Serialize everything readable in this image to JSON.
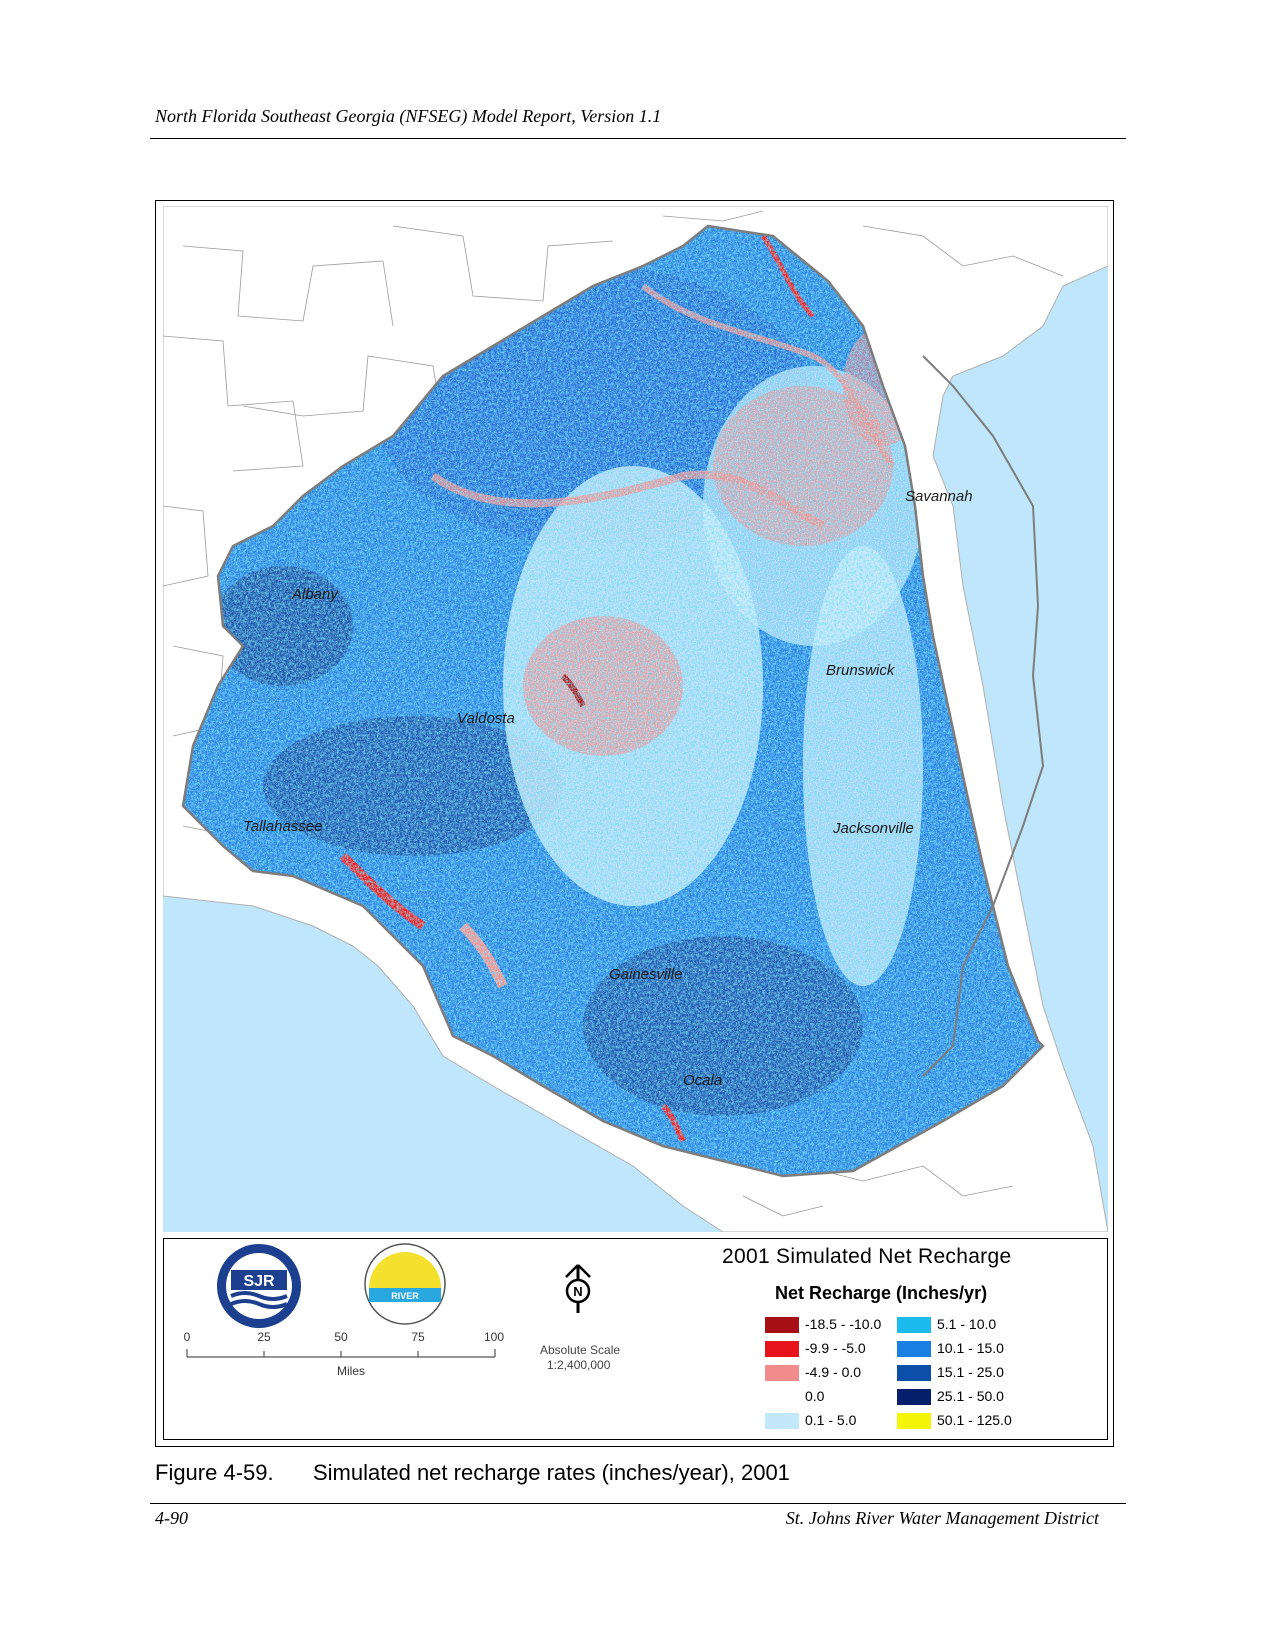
{
  "header": {
    "running_title": "North Florida Southeast Georgia (NFSEG) Model Report, Version 1.1"
  },
  "map": {
    "cities": [
      {
        "name": "Savannah"
      },
      {
        "name": "Albany"
      },
      {
        "name": "Brunswick"
      },
      {
        "name": "Valdosta"
      },
      {
        "name": "Jacksonville"
      },
      {
        "name": "Tallahassee"
      },
      {
        "name": "Gainesville"
      },
      {
        "name": "Ocala"
      }
    ],
    "colors": {
      "ocean": "#bfe6fa",
      "land": "#ffffff",
      "boundary": "#888888"
    }
  },
  "legend": {
    "title": "2001 Simulated Net Recharge",
    "subtitle": "Net Recharge (Inches/yr)",
    "classes": [
      {
        "label": "-18.5 - -10.0",
        "color": "#a50f15"
      },
      {
        "label": "-9.9 - -5.0",
        "color": "#e8141b"
      },
      {
        "label": "-4.9 - 0.0",
        "color": "#f28b8b"
      },
      {
        "label": "0.0",
        "color": "#ffffff"
      },
      {
        "label": "0.1 - 5.0",
        "color": "#c2e8fa"
      },
      {
        "label": "5.1 - 10.0",
        "color": "#1cbbee"
      },
      {
        "label": "10.1 - 15.0",
        "color": "#1a7fe3"
      },
      {
        "label": "15.1 - 25.0",
        "color": "#0b4fa8"
      },
      {
        "label": "25.1 - 50.0",
        "color": "#061f6b"
      },
      {
        "label": "50.1 - 125.0",
        "color": "#f5f50a"
      }
    ],
    "scale_bar": {
      "ticks": [
        "0",
        "25",
        "50",
        "75",
        "100"
      ],
      "unit": "Miles"
    },
    "absolute_scale": {
      "label": "Absolute Scale",
      "value": "1:2,400,000"
    },
    "north_arrow": {
      "letter": "N",
      "icon": "north-arrow-icon"
    },
    "logos": [
      {
        "text": "SJR",
        "icon": "sjrwmd-logo"
      },
      {
        "text": "RIVER",
        "icon": "suwannee-river-logo"
      }
    ]
  },
  "caption": {
    "number": "Figure 4-59.",
    "text": "Simulated net recharge rates (inches/year), 2001"
  },
  "footer": {
    "page": "4-90",
    "org": "St. Johns River Water Management District"
  }
}
